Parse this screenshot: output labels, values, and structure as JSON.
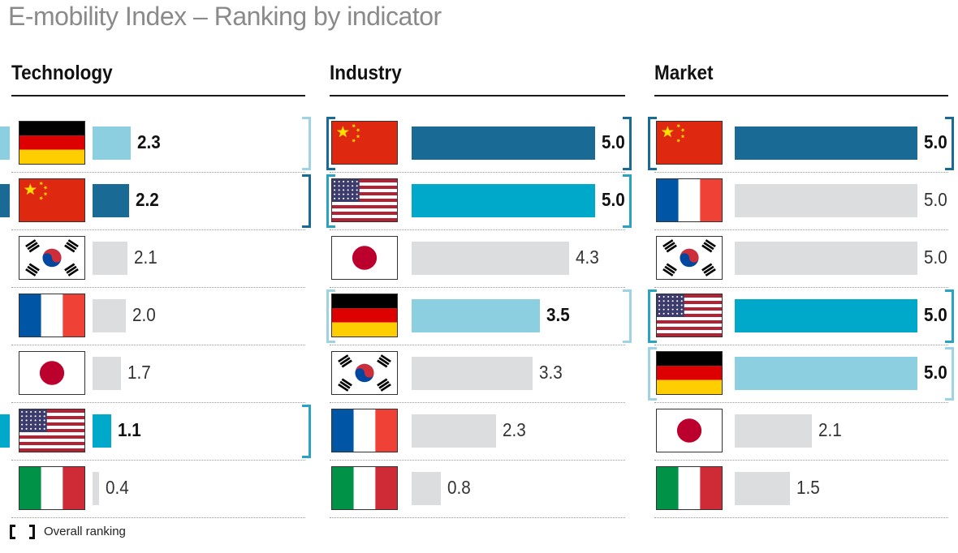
{
  "title": "E-mobility Index – Ranking by indicator",
  "legend": {
    "label": "Overall ranking"
  },
  "colors": {
    "rank1": "#1a6a96",
    "rank2": "#00a9c9",
    "rank3": "#8ccfe0",
    "other": "#dcdddf"
  },
  "chart_data": [
    {
      "type": "bar",
      "title": "Technology",
      "xlim": [
        0,
        5
      ],
      "categories": [
        "Germany",
        "China",
        "South Korea",
        "France",
        "Japan",
        "USA",
        "Italy"
      ],
      "values": [
        2.3,
        2.2,
        2.1,
        2.0,
        1.7,
        1.1,
        0.4
      ],
      "labels": [
        "2.3",
        "2.2",
        "2.1",
        "2.0",
        "1.7",
        "1.1",
        "0.4"
      ],
      "flags": [
        "germany",
        "china",
        "south-korea",
        "france",
        "japan",
        "usa",
        "italy"
      ],
      "overall_rank": [
        3,
        1,
        0,
        0,
        0,
        2,
        0
      ]
    },
    {
      "type": "bar",
      "title": "Industry",
      "xlim": [
        0,
        5
      ],
      "categories": [
        "China",
        "USA",
        "Japan",
        "Germany",
        "South Korea",
        "France",
        "Italy"
      ],
      "values": [
        5.0,
        5.0,
        4.3,
        3.5,
        3.3,
        2.3,
        0.8
      ],
      "labels": [
        "5.0",
        "5.0",
        "4.3",
        "3.5",
        "3.3",
        "2.3",
        "0.8"
      ],
      "flags": [
        "china",
        "usa",
        "japan",
        "germany",
        "south-korea",
        "france",
        "italy"
      ],
      "overall_rank": [
        1,
        2,
        0,
        3,
        0,
        0,
        0
      ]
    },
    {
      "type": "bar",
      "title": "Market",
      "xlim": [
        0,
        5
      ],
      "categories": [
        "China",
        "France",
        "South Korea",
        "USA",
        "Germany",
        "Japan",
        "Italy"
      ],
      "values": [
        5.0,
        5.0,
        5.0,
        5.0,
        5.0,
        2.1,
        1.5
      ],
      "labels": [
        "5.0",
        "5.0",
        "5.0",
        "5.0",
        "5.0",
        "2.1",
        "1.5"
      ],
      "flags": [
        "china",
        "france",
        "south-korea",
        "usa",
        "germany",
        "japan",
        "italy"
      ],
      "overall_rank": [
        1,
        0,
        0,
        2,
        3,
        0,
        0
      ]
    }
  ]
}
